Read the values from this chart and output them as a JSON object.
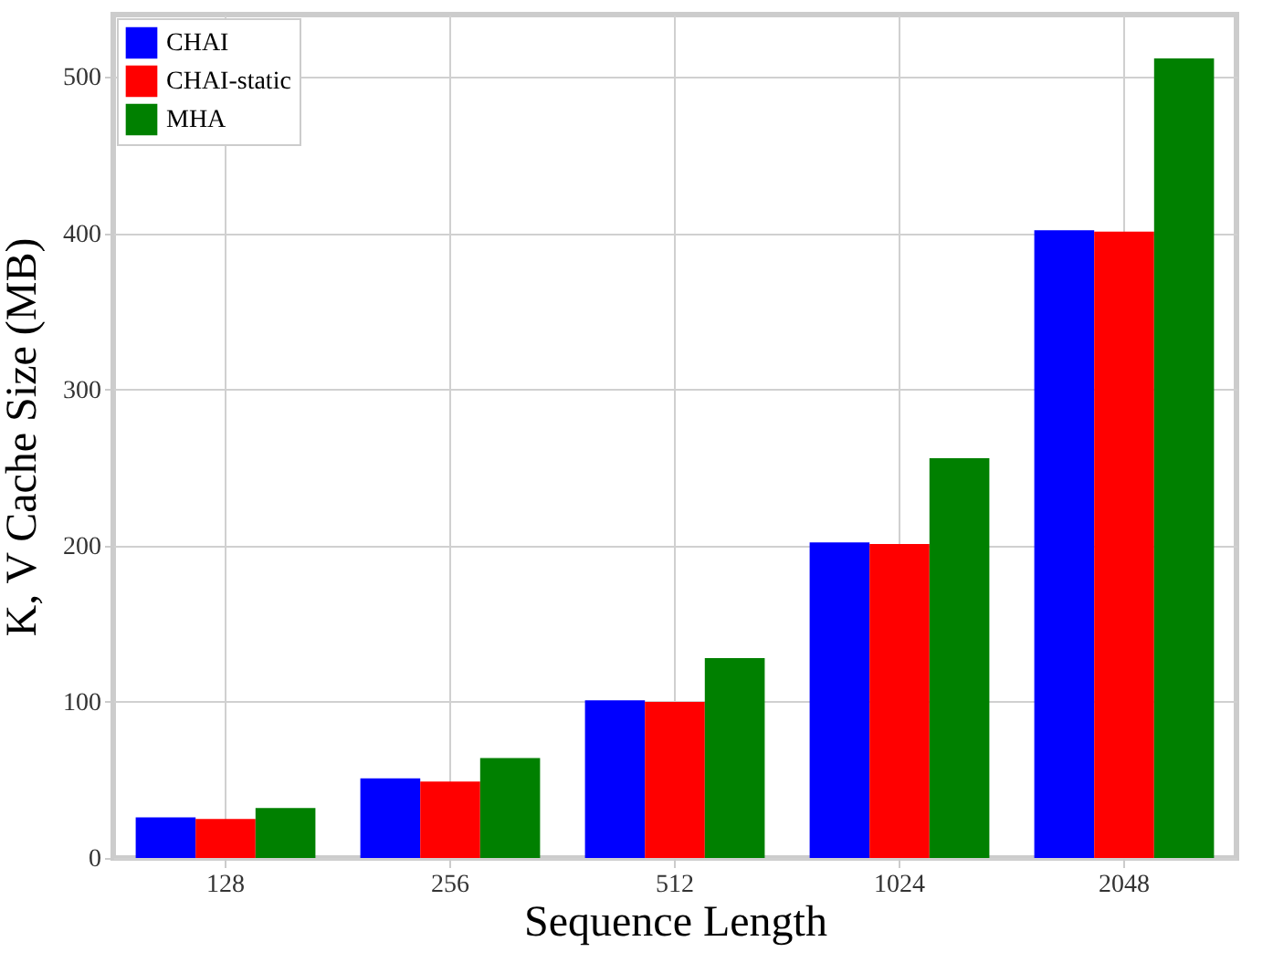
{
  "chart_data": {
    "type": "bar",
    "xlabel": "Sequence Length",
    "ylabel": "K, V Cache Size (MB)",
    "categories": [
      "128",
      "256",
      "512",
      "1024",
      "2048"
    ],
    "series": [
      {
        "name": "CHAI",
        "color": "#0000ff",
        "values": [
          26,
          51,
          101,
          202,
          402
        ]
      },
      {
        "name": "CHAI-static",
        "color": "#ff0000",
        "values": [
          25,
          49,
          100,
          201,
          401
        ]
      },
      {
        "name": "MHA",
        "color": "#008000",
        "values": [
          32,
          64,
          128,
          256,
          512
        ]
      }
    ],
    "ylim": [
      0,
      540
    ],
    "yticks": [
      0,
      100,
      200,
      300,
      400,
      500
    ],
    "grid": true,
    "legend": "top left"
  }
}
